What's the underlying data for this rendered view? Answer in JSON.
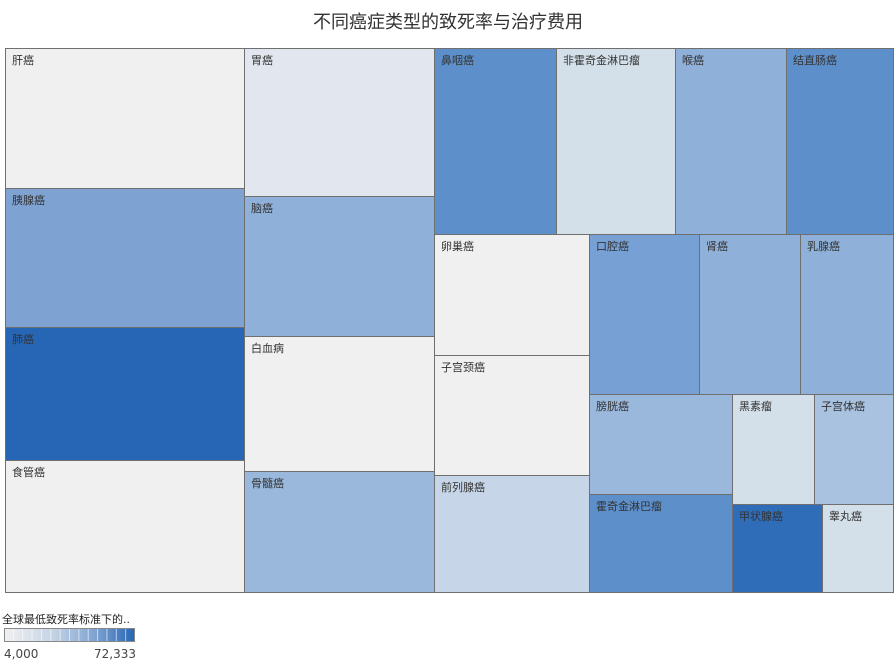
{
  "chart_data": {
    "type": "treemap",
    "title": "不同癌症类型的致死率与治疗费用",
    "color_legend": {
      "title": "全球最低致死率标准下的..",
      "min_label": "4,000",
      "max_label": "72,333",
      "min_value": 4000,
      "max_value": 72333,
      "color_low": "#f0f0f0",
      "color_high": "#2766b5"
    },
    "border_color": "#6f6f6f",
    "label_color": "#333333",
    "cells": [
      {
        "label": "肝癌",
        "color": "#f0f0f0"
      },
      {
        "label": "胰腺癌",
        "color": "#7ea3d2"
      },
      {
        "label": "肺癌",
        "color": "#2766b5"
      },
      {
        "label": "食管癌",
        "color": "#f0f0f0"
      },
      {
        "label": "胃癌",
        "color": "#e2e7ef"
      },
      {
        "label": "脑癌",
        "color": "#8fb0d8"
      },
      {
        "label": "白血病",
        "color": "#f0f0f0"
      },
      {
        "label": "骨髓癌",
        "color": "#9ab8dc"
      },
      {
        "label": "鼻咽癌",
        "color": "#5d8fcb"
      },
      {
        "label": "非霍奇金淋巴瘤",
        "color": "#d3dfe9"
      },
      {
        "label": "喉癌",
        "color": "#8fb0d8"
      },
      {
        "label": "结直肠癌",
        "color": "#5d8fcb"
      },
      {
        "label": "卵巢癌",
        "color": "#f0f0f0"
      },
      {
        "label": "子宫颈癌",
        "color": "#f0f0f0"
      },
      {
        "label": "前列腺癌",
        "color": "#c6d6e8"
      },
      {
        "label": "口腔癌",
        "color": "#77a1d4"
      },
      {
        "label": "肾癌",
        "color": "#8fb0d8"
      },
      {
        "label": "乳腺癌",
        "color": "#8fb0d8"
      },
      {
        "label": "膀胱癌",
        "color": "#9ab8dc"
      },
      {
        "label": "黑素瘤",
        "color": "#d3dfe9"
      },
      {
        "label": "子宫体癌",
        "color": "#a8c2e0"
      },
      {
        "label": "霍奇金淋巴瘤",
        "color": "#5d8fcb"
      },
      {
        "label": "甲状腺癌",
        "color": "#2f6db9"
      },
      {
        "label": "睾丸癌",
        "color": "#d3dfe9"
      }
    ]
  }
}
